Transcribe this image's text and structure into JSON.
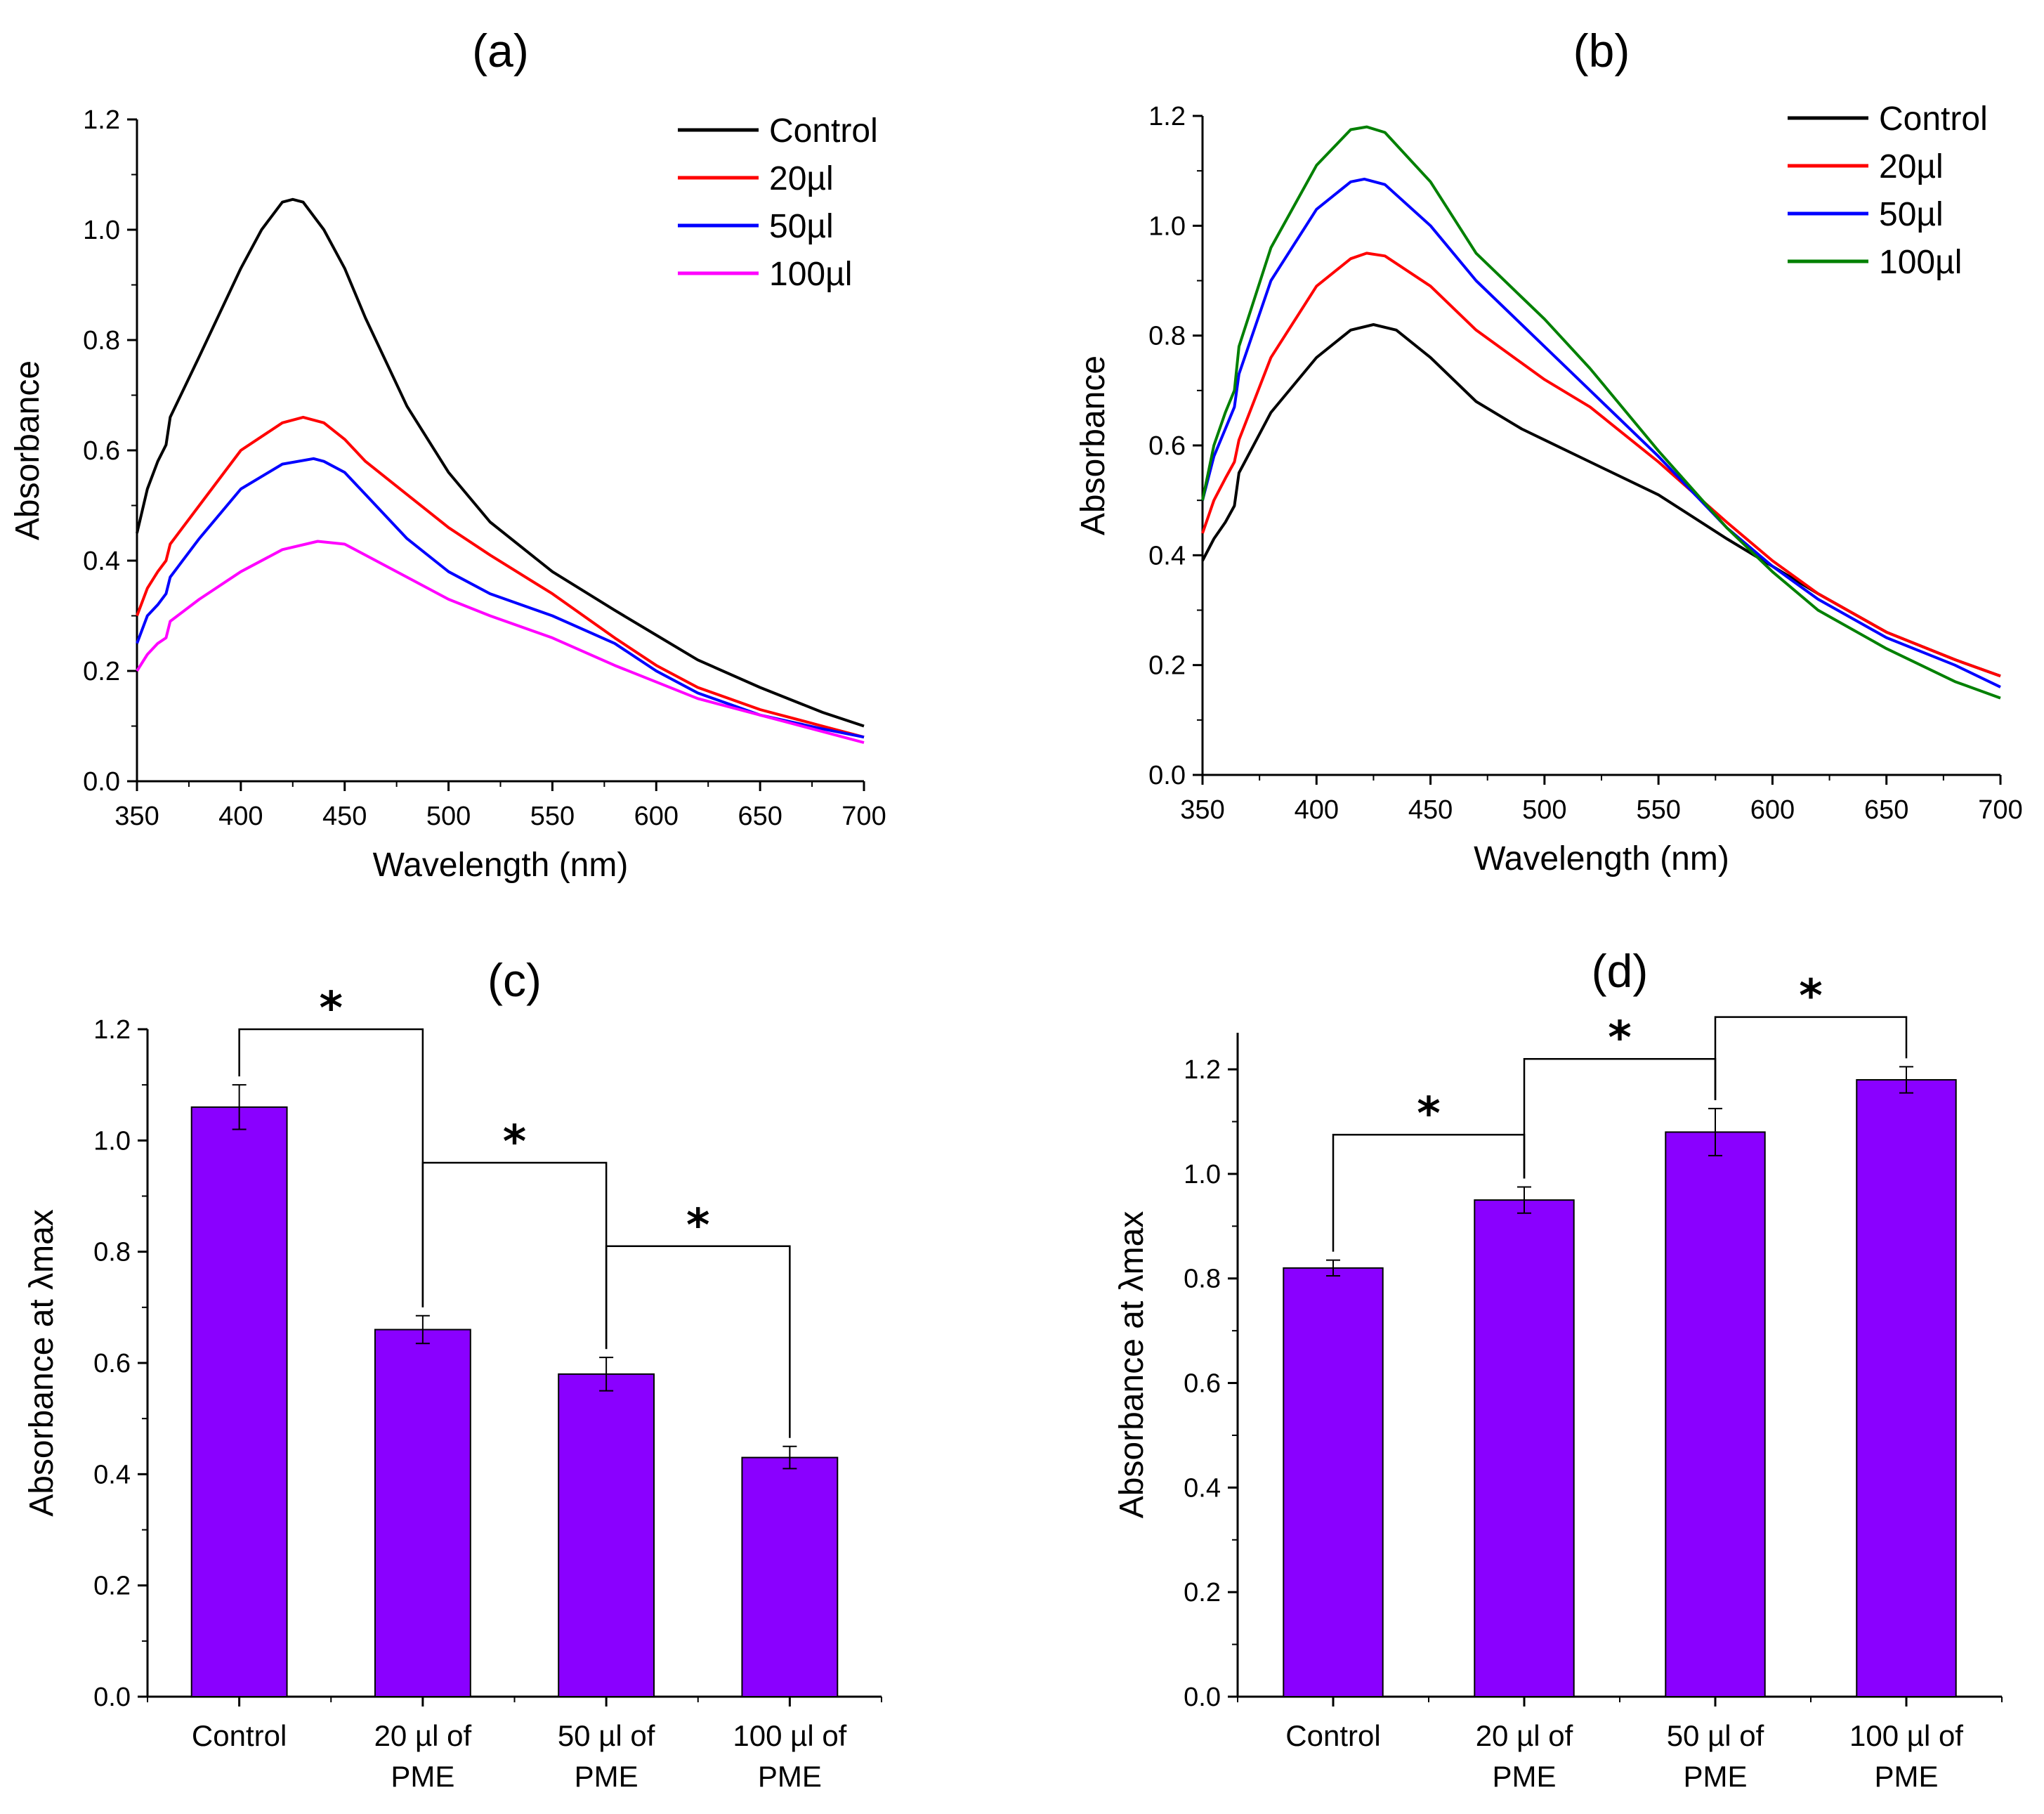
{
  "chart_data": [
    {
      "id": "a",
      "type": "line",
      "title": "(a)",
      "xlabel": "Wavelength (nm)",
      "ylabel": "Absorbance",
      "xlim": [
        350,
        700
      ],
      "ylim": [
        0.0,
        1.2
      ],
      "xticks": [
        350,
        400,
        450,
        500,
        550,
        600,
        650,
        700
      ],
      "yticks": [
        "0.0",
        "0.2",
        "0.4",
        "0.6",
        "0.8",
        "1.0",
        "1.2"
      ],
      "legend_position": "top-right",
      "series": [
        {
          "name": "Control",
          "color": "#000000",
          "x": [
            350,
            355,
            360,
            364,
            366,
            380,
            400,
            410,
            420,
            425,
            430,
            440,
            450,
            460,
            480,
            500,
            520,
            550,
            580,
            600,
            620,
            650,
            680,
            700
          ],
          "y": [
            0.45,
            0.53,
            0.58,
            0.61,
            0.66,
            0.77,
            0.93,
            1.0,
            1.05,
            1.055,
            1.05,
            1.0,
            0.93,
            0.84,
            0.68,
            0.56,
            0.47,
            0.38,
            0.31,
            0.265,
            0.22,
            0.17,
            0.125,
            0.1
          ]
        },
        {
          "name": "20µl",
          "color": "#ff0000",
          "x": [
            350,
            355,
            360,
            364,
            366,
            380,
            400,
            420,
            430,
            440,
            450,
            460,
            480,
            500,
            520,
            550,
            580,
            600,
            620,
            650,
            680,
            700
          ],
          "y": [
            0.3,
            0.35,
            0.38,
            0.4,
            0.43,
            0.5,
            0.6,
            0.65,
            0.66,
            0.65,
            0.62,
            0.58,
            0.52,
            0.46,
            0.41,
            0.34,
            0.26,
            0.21,
            0.17,
            0.13,
            0.1,
            0.08
          ]
        },
        {
          "name": "50µl",
          "color": "#0000ff",
          "x": [
            350,
            355,
            360,
            364,
            366,
            380,
            400,
            420,
            435,
            440,
            450,
            460,
            480,
            500,
            520,
            550,
            580,
            600,
            620,
            650,
            680,
            700
          ],
          "y": [
            0.25,
            0.3,
            0.32,
            0.34,
            0.37,
            0.44,
            0.53,
            0.575,
            0.585,
            0.58,
            0.56,
            0.52,
            0.44,
            0.38,
            0.34,
            0.3,
            0.25,
            0.2,
            0.16,
            0.12,
            0.095,
            0.08
          ]
        },
        {
          "name": "100µl",
          "color": "#ff00ff",
          "x": [
            350,
            355,
            360,
            364,
            366,
            380,
            400,
            420,
            437,
            450,
            460,
            480,
            500,
            520,
            550,
            580,
            600,
            620,
            650,
            680,
            700
          ],
          "y": [
            0.2,
            0.23,
            0.25,
            0.26,
            0.29,
            0.33,
            0.38,
            0.42,
            0.435,
            0.43,
            0.41,
            0.37,
            0.33,
            0.3,
            0.26,
            0.21,
            0.18,
            0.15,
            0.12,
            0.09,
            0.07
          ]
        }
      ]
    },
    {
      "id": "b",
      "type": "line",
      "title": "(b)",
      "xlabel": "Wavelength (nm)",
      "ylabel": "Absorbance",
      "xlim": [
        350,
        700
      ],
      "ylim": [
        0.0,
        1.2
      ],
      "xticks": [
        350,
        400,
        450,
        500,
        550,
        600,
        650,
        700
      ],
      "yticks": [
        "0.0",
        "0.2",
        "0.4",
        "0.6",
        "0.8",
        "1.0",
        "1.2"
      ],
      "legend_position": "top-right",
      "series": [
        {
          "name": "Control",
          "color": "#000000",
          "x": [
            350,
            355,
            360,
            364,
            366,
            380,
            400,
            415,
            425,
            435,
            450,
            470,
            490,
            500,
            520,
            550,
            580,
            600,
            620,
            650,
            680,
            700
          ],
          "y": [
            0.39,
            0.43,
            0.46,
            0.49,
            0.55,
            0.66,
            0.76,
            0.81,
            0.82,
            0.81,
            0.76,
            0.68,
            0.63,
            0.61,
            0.57,
            0.51,
            0.43,
            0.38,
            0.33,
            0.26,
            0.21,
            0.18
          ]
        },
        {
          "name": "20µl",
          "color": "#ff0000",
          "x": [
            350,
            355,
            360,
            364,
            366,
            380,
            400,
            415,
            422,
            430,
            450,
            470,
            490,
            500,
            520,
            550,
            580,
            600,
            620,
            650,
            680,
            700
          ],
          "y": [
            0.44,
            0.5,
            0.54,
            0.57,
            0.61,
            0.76,
            0.89,
            0.94,
            0.95,
            0.945,
            0.89,
            0.81,
            0.75,
            0.72,
            0.67,
            0.57,
            0.46,
            0.39,
            0.33,
            0.26,
            0.21,
            0.18
          ]
        },
        {
          "name": "50µl",
          "color": "#0000ff",
          "x": [
            350,
            355,
            360,
            364,
            366,
            380,
            400,
            415,
            421,
            430,
            450,
            470,
            490,
            500,
            520,
            550,
            580,
            600,
            620,
            650,
            680,
            700
          ],
          "y": [
            0.5,
            0.58,
            0.63,
            0.67,
            0.73,
            0.9,
            1.03,
            1.08,
            1.085,
            1.075,
            1.0,
            0.9,
            0.82,
            0.78,
            0.7,
            0.58,
            0.45,
            0.38,
            0.32,
            0.25,
            0.2,
            0.16
          ]
        },
        {
          "name": "100µl",
          "color": "#008000",
          "x": [
            350,
            355,
            360,
            364,
            366,
            380,
            400,
            415,
            422,
            430,
            450,
            470,
            490,
            500,
            520,
            550,
            580,
            600,
            620,
            650,
            680,
            700
          ],
          "y": [
            0.5,
            0.6,
            0.66,
            0.7,
            0.78,
            0.96,
            1.11,
            1.175,
            1.18,
            1.17,
            1.08,
            0.95,
            0.87,
            0.83,
            0.74,
            0.59,
            0.45,
            0.37,
            0.3,
            0.23,
            0.17,
            0.14
          ]
        }
      ]
    },
    {
      "id": "c",
      "type": "bar",
      "title": "(c)",
      "xlabel": "",
      "ylabel": "Absorbance at λmax",
      "ylim": [
        0.0,
        1.2
      ],
      "yticks": [
        "0.0",
        "0.2",
        "0.4",
        "0.6",
        "0.8",
        "1.0",
        "1.2"
      ],
      "bar_color": "#8a00ff",
      "categories": [
        [
          "Control"
        ],
        [
          "20 µl of",
          "PME"
        ],
        [
          "50 µl of",
          "PME"
        ],
        [
          "100 µl of",
          "PME"
        ]
      ],
      "values": [
        1.06,
        0.66,
        0.58,
        0.43
      ],
      "errors": [
        0.04,
        0.025,
        0.03,
        0.02
      ],
      "significance": [
        {
          "from": 0,
          "to": 1,
          "level": 1.2,
          "label": "*"
        },
        {
          "from": 1,
          "to": 2,
          "level": 0.96,
          "label": "*"
        },
        {
          "from": 2,
          "to": 3,
          "level": 0.81,
          "label": "*"
        }
      ]
    },
    {
      "id": "d",
      "type": "bar",
      "title": "(d)",
      "xlabel": "",
      "ylabel": "Absorbance at λmax",
      "ylim": [
        0.0,
        1.27
      ],
      "yticks": [
        "0.0",
        "0.2",
        "0.4",
        "0.6",
        "0.8",
        "1.0",
        "1.2"
      ],
      "bar_color": "#8a00ff",
      "categories": [
        [
          "Control"
        ],
        [
          "20 µl of",
          "PME"
        ],
        [
          "50 µl of",
          "PME"
        ],
        [
          "100 µl of",
          "PME"
        ]
      ],
      "values": [
        0.82,
        0.95,
        1.08,
        1.18
      ],
      "errors": [
        0.015,
        0.025,
        0.045,
        0.025
      ],
      "significance": [
        {
          "from": 0,
          "to": 1,
          "level": 1.075,
          "label": "*"
        },
        {
          "from": 1,
          "to": 2,
          "level": 1.22,
          "label": "*"
        },
        {
          "from": 2,
          "to": 3,
          "level": 1.3,
          "label": "*"
        }
      ]
    }
  ]
}
